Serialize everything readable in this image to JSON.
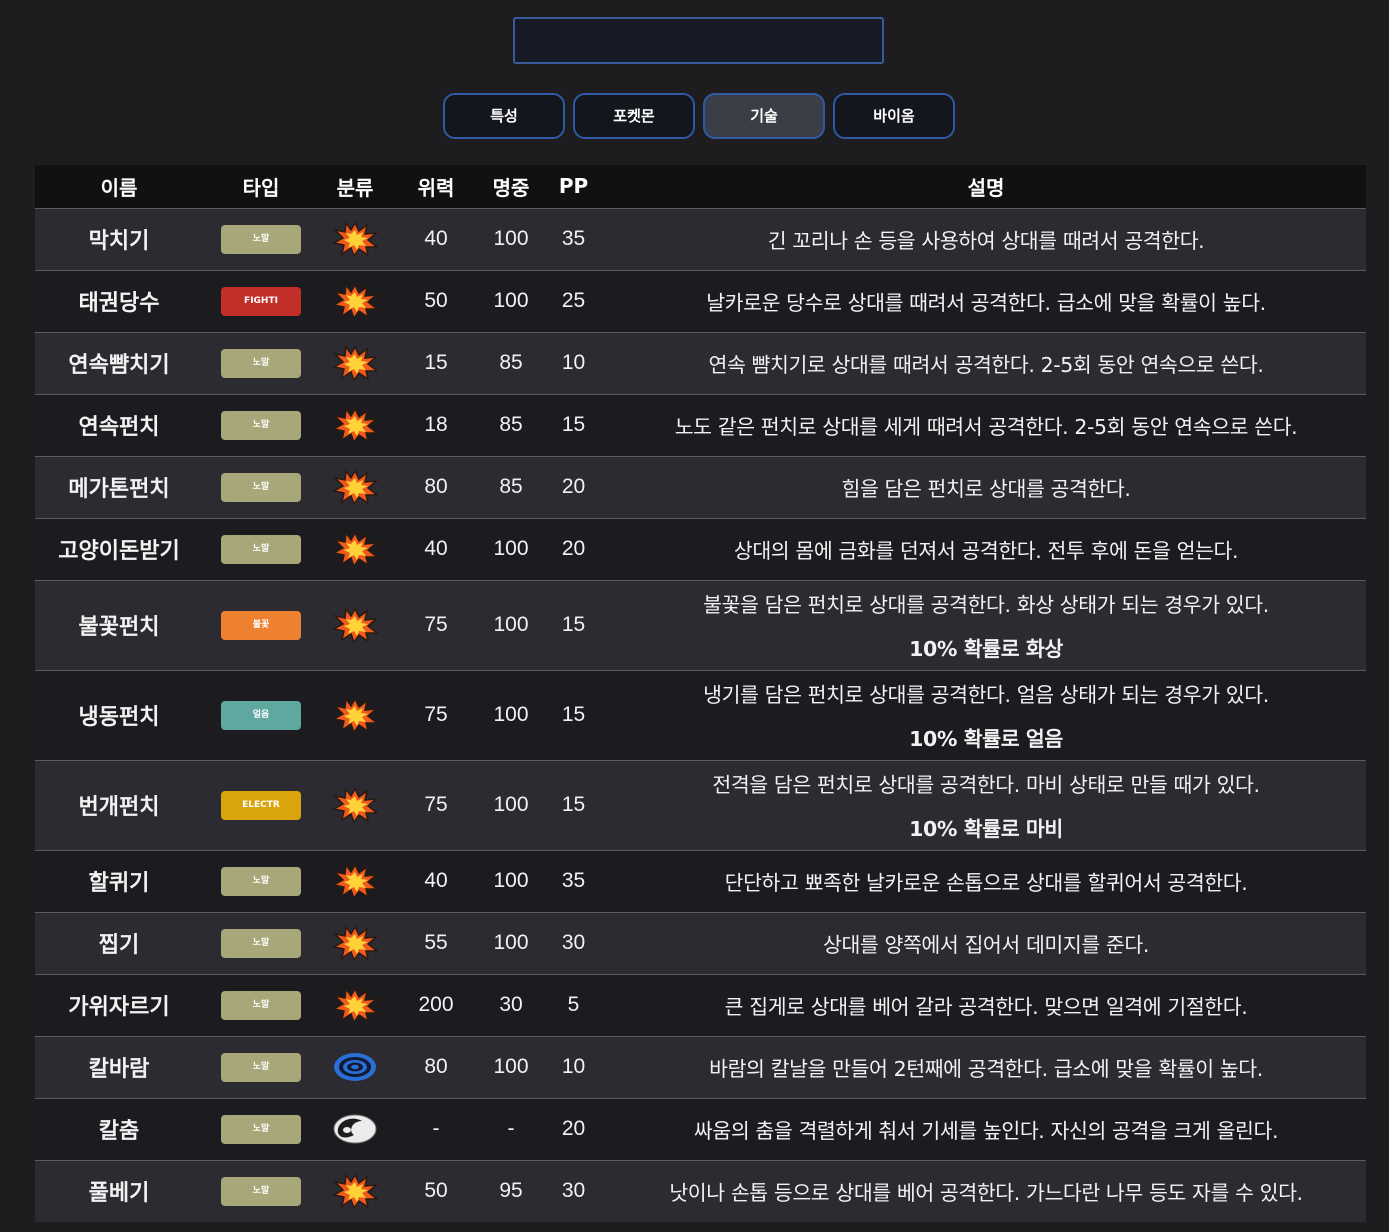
{
  "search": {
    "value": "",
    "placeholder": ""
  },
  "tabs": [
    {
      "label": "특성",
      "active": false
    },
    {
      "label": "포켓몬",
      "active": false
    },
    {
      "label": "기술",
      "active": true
    },
    {
      "label": "바이옴",
      "active": false
    }
  ],
  "columns": {
    "name": "이름",
    "type": "타입",
    "category": "분류",
    "power": "위력",
    "accuracy": "명중",
    "pp": "PP",
    "description": "설명"
  },
  "type_colors": {
    "노말": "#a8a77a",
    "FIGHTI": "#c22e28",
    "불꽃": "#ee8130",
    "얼음": "#5fa8a0",
    "ELECTR": "#daa50c"
  },
  "category_icons": {
    "physical": "physical-move-icon",
    "special": "special-move-icon",
    "status": "status-move-icon"
  },
  "moves": [
    {
      "name": "막치기",
      "type": "노말",
      "category": "physical",
      "power": "40",
      "accuracy": "100",
      "pp": "35",
      "description": "긴 꼬리나 손 등을 사용하여 상대를 때려서 공격한다.",
      "effect": ""
    },
    {
      "name": "태권당수",
      "type": "FIGHTI",
      "category": "physical",
      "power": "50",
      "accuracy": "100",
      "pp": "25",
      "description": "날카로운 당수로 상대를 때려서 공격한다. 급소에 맞을 확률이 높다.",
      "effect": ""
    },
    {
      "name": "연속뺨치기",
      "type": "노말",
      "category": "physical",
      "power": "15",
      "accuracy": "85",
      "pp": "10",
      "description": "연속 뺨치기로 상대를 때려서 공격한다. 2-5회 동안 연속으로 쓴다.",
      "effect": ""
    },
    {
      "name": "연속펀치",
      "type": "노말",
      "category": "physical",
      "power": "18",
      "accuracy": "85",
      "pp": "15",
      "description": "노도 같은 펀치로 상대를 세게 때려서 공격한다. 2-5회 동안 연속으로 쓴다.",
      "effect": ""
    },
    {
      "name": "메가톤펀치",
      "type": "노말",
      "category": "physical",
      "power": "80",
      "accuracy": "85",
      "pp": "20",
      "description": "힘을 담은 펀치로 상대를 공격한다.",
      "effect": ""
    },
    {
      "name": "고양이돈받기",
      "type": "노말",
      "category": "physical",
      "power": "40",
      "accuracy": "100",
      "pp": "20",
      "description": "상대의 몸에 금화를 던져서 공격한다. 전투 후에 돈을 얻는다.",
      "effect": ""
    },
    {
      "name": "불꽃펀치",
      "type": "불꽃",
      "category": "physical",
      "power": "75",
      "accuracy": "100",
      "pp": "15",
      "description": "불꽃을 담은 펀치로 상대를 공격한다. 화상 상태가 되는 경우가 있다.",
      "effect": "10% 확률로 화상"
    },
    {
      "name": "냉동펀치",
      "type": "얼음",
      "category": "physical",
      "power": "75",
      "accuracy": "100",
      "pp": "15",
      "description": "냉기를 담은 펀치로 상대를 공격한다. 얼음 상태가 되는 경우가 있다.",
      "effect": "10% 확률로 얼음"
    },
    {
      "name": "번개펀치",
      "type": "ELECTR",
      "category": "physical",
      "power": "75",
      "accuracy": "100",
      "pp": "15",
      "description": "전격을 담은 펀치로 상대를 공격한다. 마비 상태로 만들 때가 있다.",
      "effect": "10% 확률로 마비"
    },
    {
      "name": "할퀴기",
      "type": "노말",
      "category": "physical",
      "power": "40",
      "accuracy": "100",
      "pp": "35",
      "description": "단단하고 뾰족한 날카로운 손톱으로 상대를 할퀴어서 공격한다.",
      "effect": ""
    },
    {
      "name": "찝기",
      "type": "노말",
      "category": "physical",
      "power": "55",
      "accuracy": "100",
      "pp": "30",
      "description": "상대를 양쪽에서 집어서 데미지를 준다.",
      "effect": ""
    },
    {
      "name": "가위자르기",
      "type": "노말",
      "category": "physical",
      "power": "200",
      "accuracy": "30",
      "pp": "5",
      "description": "큰 집게로 상대를 베어 갈라 공격한다. 맞으면 일격에 기절한다.",
      "effect": ""
    },
    {
      "name": "칼바람",
      "type": "노말",
      "category": "special",
      "power": "80",
      "accuracy": "100",
      "pp": "10",
      "description": "바람의 칼날을 만들어 2턴째에 공격한다. 급소에 맞을 확률이 높다.",
      "effect": ""
    },
    {
      "name": "칼춤",
      "type": "노말",
      "category": "status",
      "power": "-",
      "accuracy": "-",
      "pp": "20",
      "description": "싸움의 춤을 격렬하게 춰서 기세를 높인다. 자신의 공격을 크게 올린다.",
      "effect": ""
    },
    {
      "name": "풀베기",
      "type": "노말",
      "category": "physical",
      "power": "50",
      "accuracy": "95",
      "pp": "30",
      "description": "낫이나 손톱 등으로 상대를 베어 공격한다. 가느다란 나무 등도 자를 수 있다.",
      "effect": ""
    }
  ]
}
